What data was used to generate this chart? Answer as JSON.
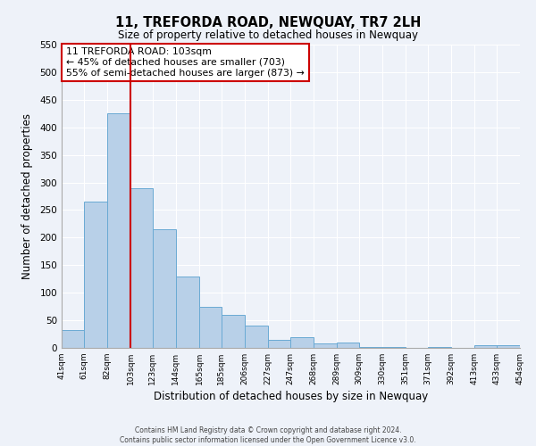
{
  "title": "11, TREFORDA ROAD, NEWQUAY, TR7 2LH",
  "subtitle": "Size of property relative to detached houses in Newquay",
  "xlabel": "Distribution of detached houses by size in Newquay",
  "ylabel": "Number of detached properties",
  "bar_edges": [
    41,
    61,
    82,
    103,
    123,
    144,
    165,
    185,
    206,
    227,
    247,
    268,
    289,
    309,
    330,
    351,
    371,
    392,
    413,
    433,
    454
  ],
  "bar_heights": [
    32,
    265,
    425,
    290,
    215,
    130,
    75,
    60,
    40,
    15,
    20,
    8,
    10,
    1,
    1,
    0,
    1,
    0,
    5,
    5
  ],
  "bar_color": "#b8d0e8",
  "bar_edgecolor": "#6aaad4",
  "vline_x": 103,
  "vline_color": "#cc0000",
  "annotation_box_text": "11 TREFORDA ROAD: 103sqm\n← 45% of detached houses are smaller (703)\n55% of semi-detached houses are larger (873) →",
  "ylim": [
    0,
    550
  ],
  "yticks": [
    0,
    50,
    100,
    150,
    200,
    250,
    300,
    350,
    400,
    450,
    500,
    550
  ],
  "tick_labels": [
    "41sqm",
    "61sqm",
    "82sqm",
    "103sqm",
    "123sqm",
    "144sqm",
    "165sqm",
    "185sqm",
    "206sqm",
    "227sqm",
    "247sqm",
    "268sqm",
    "289sqm",
    "309sqm",
    "330sqm",
    "351sqm",
    "371sqm",
    "392sqm",
    "413sqm",
    "433sqm",
    "454sqm"
  ],
  "footer_line1": "Contains HM Land Registry data © Crown copyright and database right 2024.",
  "footer_line2": "Contains public sector information licensed under the Open Government Licence v3.0.",
  "background_color": "#eef2f9",
  "plot_background_color": "#eef2f9",
  "grid_color": "#ffffff"
}
